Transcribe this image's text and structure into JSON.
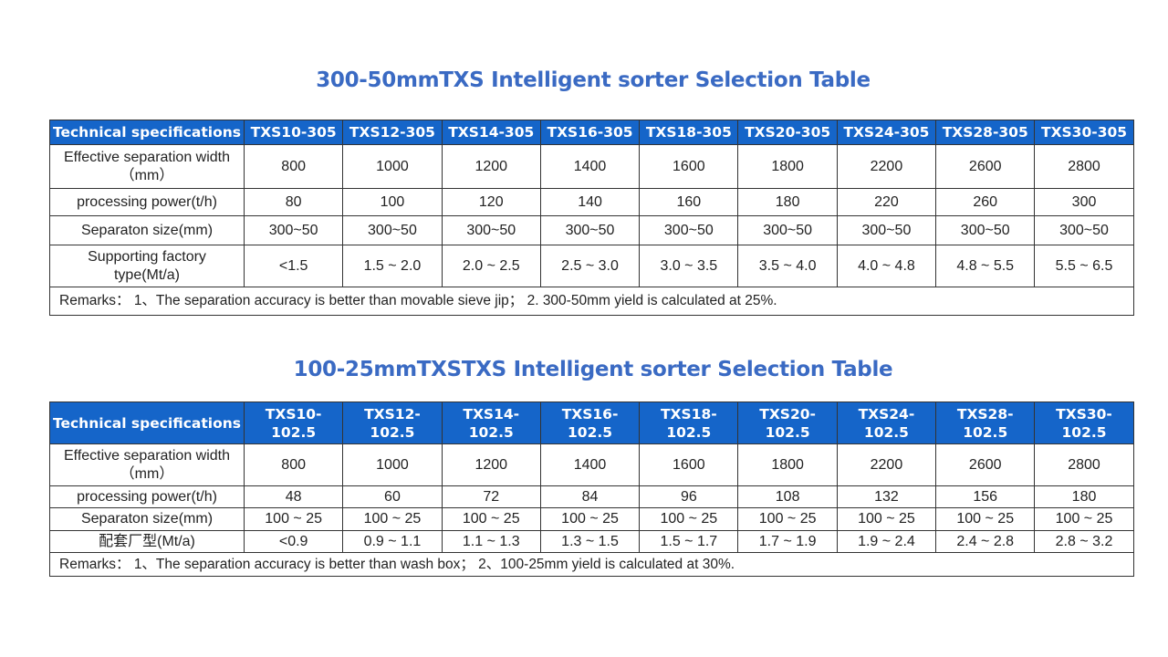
{
  "table1": {
    "title": "300-50mmTXS Intelligent sorter Selection Table",
    "header_label": "Technical specifications",
    "models": [
      "TXS10-305",
      "TXS12-305",
      "TXS14-305",
      "TXS16-305",
      "TXS18-305",
      "TXS20-305",
      "TXS24-305",
      "TXS28-305",
      "TXS30-305"
    ],
    "rows": [
      {
        "label": "Effective separation width\n（mm）",
        "values": [
          "800",
          "1000",
          "1200",
          "1400",
          "1600",
          "1800",
          "2200",
          "2600",
          "2800"
        ]
      },
      {
        "label": "processing power(t/h)",
        "values": [
          "80",
          "100",
          "120",
          "140",
          "160",
          "180",
          "220",
          "260",
          "300"
        ]
      },
      {
        "label": "Separaton size(mm)",
        "values": [
          "300~50",
          "300~50",
          "300~50",
          "300~50",
          "300~50",
          "300~50",
          "300~50",
          "300~50",
          "300~50"
        ]
      },
      {
        "label": "Supporting factory\ntype(Mt/a)",
        "values": [
          "<1.5",
          "1.5 ~ 2.0",
          "2.0 ~ 2.5",
          "2.5 ~ 3.0",
          "3.0 ~ 3.5",
          "3.5 ~ 4.0",
          "4.0 ~ 4.8",
          "4.8 ~ 5.5",
          "5.5 ~ 6.5"
        ]
      }
    ],
    "remarks": "Remarks：  1、The separation accuracy is better than movable sieve jip；  2. 300-50mm yield is calculated at 25%."
  },
  "table2": {
    "title": "100-25mmTXSTXS Intelligent sorter Selection Table",
    "header_label": "Technical specifications",
    "models": [
      "TXS10-\n102.5",
      "TXS12-\n102.5",
      "TXS14-\n102.5",
      "TXS16-\n102.5",
      "TXS18-\n102.5",
      "TXS20-\n102.5",
      "TXS24-\n102.5",
      "TXS28-\n102.5",
      "TXS30-\n102.5"
    ],
    "rows": [
      {
        "label": "Effective separation width\n（mm）",
        "values": [
          "800",
          "1000",
          "1200",
          "1400",
          "1600",
          "1800",
          "2200",
          "2600",
          "2800"
        ]
      },
      {
        "label": "processing power(t/h)",
        "values": [
          "48",
          "60",
          "72",
          "84",
          "96",
          "108",
          "132",
          "156",
          "180"
        ]
      },
      {
        "label": "Separaton size(mm)",
        "values": [
          "100 ~ 25",
          "100 ~ 25",
          "100 ~ 25",
          "100 ~ 25",
          "100 ~ 25",
          "100 ~ 25",
          "100 ~ 25",
          "100 ~ 25",
          "100 ~ 25"
        ]
      },
      {
        "label": "配套厂型(Mt/a)",
        "values": [
          "<0.9",
          "0.9 ~ 1.1",
          "1.1 ~ 1.3",
          "1.3 ~ 1.5",
          "1.5 ~ 1.7",
          "1.7 ~ 1.9",
          "1.9 ~ 2.4",
          "2.4 ~ 2.8",
          "2.8 ~ 3.2"
        ]
      }
    ],
    "remarks": "Remarks：  1、The separation accuracy is better than wash box；  2、100-25mm yield is calculated at 30%."
  },
  "colors": {
    "title": "#3a6ac3",
    "header_bg": "#1565c9",
    "header_text": "#ffffff",
    "border": "#333333"
  }
}
